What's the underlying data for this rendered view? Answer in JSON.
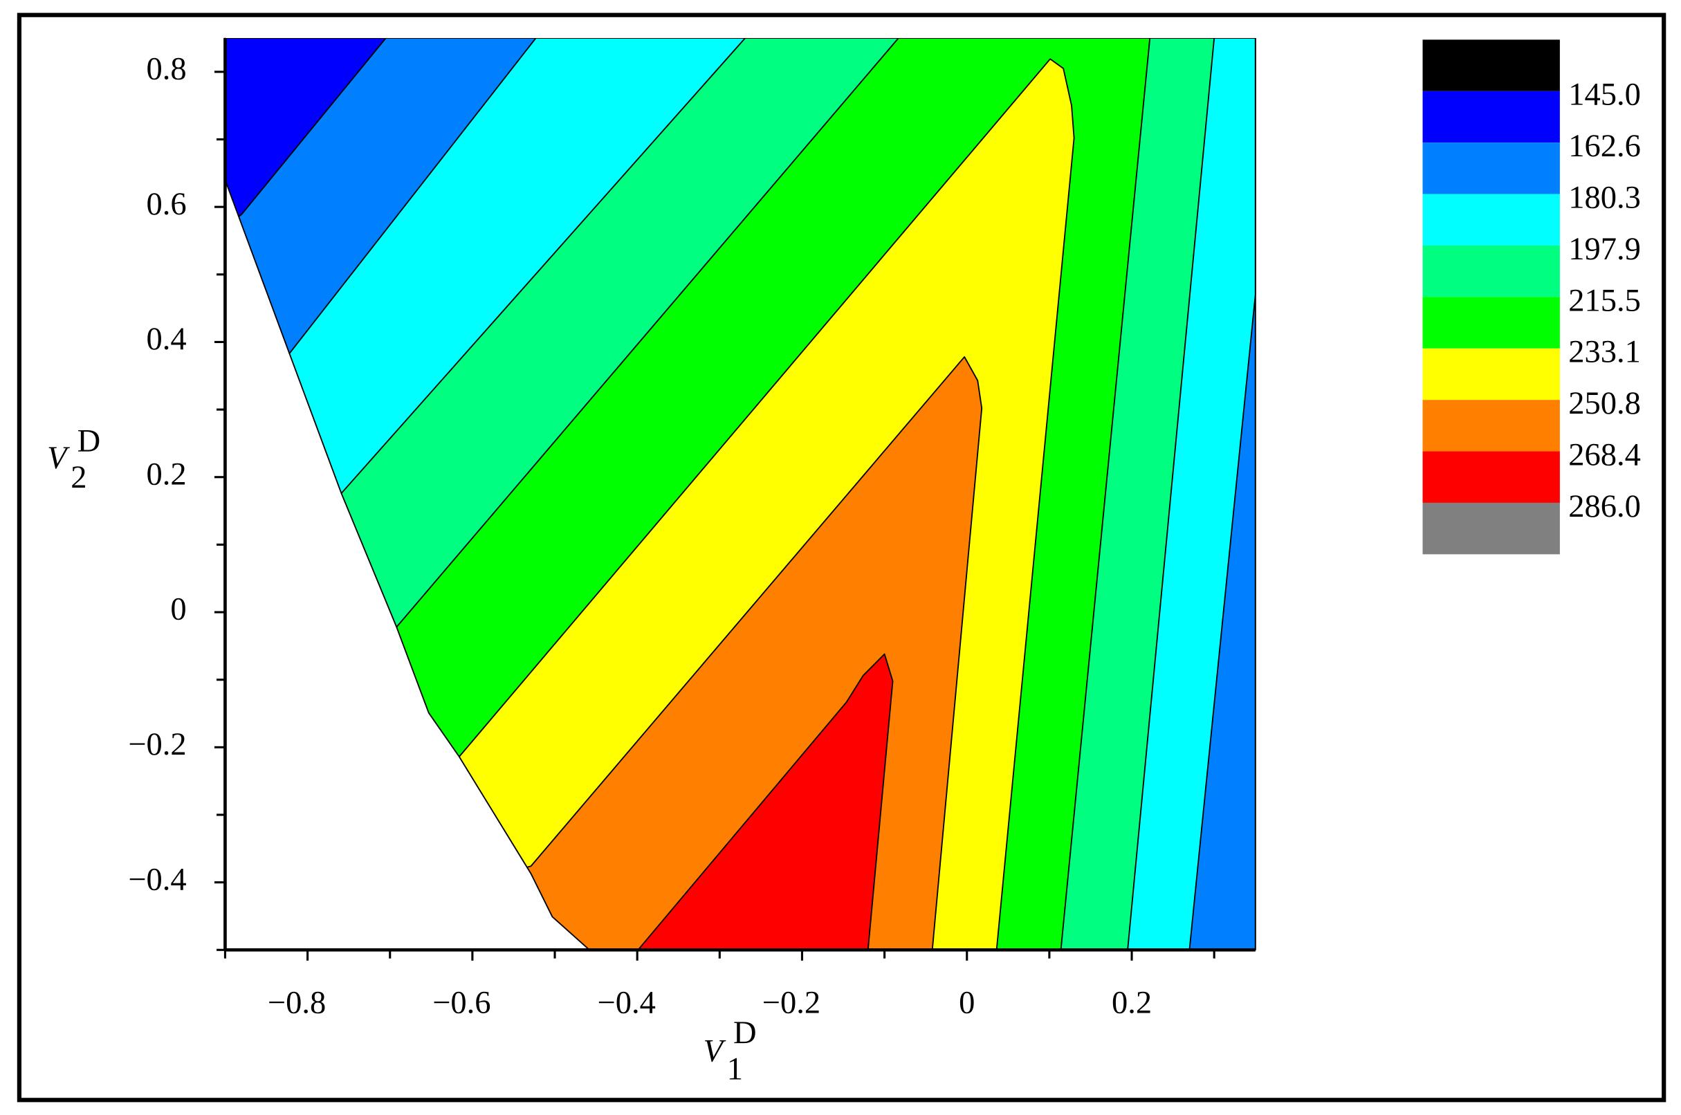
{
  "chart_data": {
    "type": "contour",
    "xlabel": {
      "text": "V",
      "sub": "1",
      "sup": "D"
    },
    "ylabel": {
      "text": "V",
      "sub": "2",
      "sup": "D"
    },
    "xlim": [
      -0.9,
      0.35
    ],
    "ylim": [
      -0.5,
      0.85
    ],
    "xticks": [
      {
        "value": -0.8,
        "label": "−0.8"
      },
      {
        "value": -0.6,
        "label": "−0.6"
      },
      {
        "value": -0.4,
        "label": "−0.4"
      },
      {
        "value": -0.2,
        "label": "−0.2"
      },
      0,
      0.2
    ],
    "yticks": [
      {
        "value": -0.4,
        "label": "−0.4"
      },
      {
        "value": -0.2,
        "label": "−0.2"
      },
      0,
      0.2,
      0.4,
      0.6,
      0.8
    ],
    "xminorticks": [
      -0.9,
      -0.7,
      -0.5,
      -0.3,
      -0.1,
      0.1,
      0.3
    ],
    "yminorticks": [
      -0.5,
      -0.3,
      -0.1,
      0.1,
      0.3,
      0.5,
      0.7
    ],
    "levels": [
      {
        "value": 145,
        "label": "145.0"
      },
      162.6,
      180.3,
      197.9,
      215.5,
      233.1,
      250.8,
      268.4,
      {
        "value": 286,
        "label": "286.0"
      }
    ],
    "legend_colors": [
      "#000000",
      "#0000ff",
      "#0080ff",
      "#00ffff",
      "#00ff80",
      "#00ff00",
      "#ffff00",
      "#ff8000",
      "#ff0000",
      "#808080"
    ],
    "regions": [
      {
        "color": "#0000ff",
        "x": [
          -0.9,
          0.35,
          0.35,
          -0.9
        ],
        "y": [
          0.85,
          0.85,
          -0.5,
          -0.5
        ]
      },
      {
        "color": "#0080ff",
        "x": [
          -0.705,
          0.35,
          0.35,
          -0.9,
          -0.9,
          -0.88
        ],
        "y": [
          0.85,
          0.85,
          -0.5,
          -0.5,
          0.57,
          0.589
        ]
      },
      {
        "color": "#00ffff",
        "x": [
          -0.523,
          0.35,
          0.35,
          0.27,
          -0.9,
          -0.9,
          -0.822
        ],
        "y": [
          0.85,
          0.85,
          0.47,
          -0.5,
          -0.5,
          0.3,
          0.383
        ]
      },
      {
        "color": "#00ff80",
        "x": [
          -0.269,
          0.3,
          0.195,
          -0.9,
          -0.9,
          -0.759
        ],
        "y": [
          0.85,
          0.85,
          -0.5,
          -0.5,
          0.1,
          0.176
        ]
      },
      {
        "color": "#00ff00",
        "x": [
          -0.083,
          0.222,
          0.114,
          -0.9,
          -0.9,
          -0.692
        ],
        "y": [
          0.85,
          0.85,
          -0.5,
          -0.5,
          -0.1,
          -0.022
        ]
      },
      {
        "color": "#ffff00",
        "x": [
          0.101,
          0.117,
          0.127,
          0.13,
          0.036,
          -0.9,
          -0.616
        ],
        "y": [
          0.819,
          0.805,
          0.75,
          0.702,
          -0.5,
          -0.5,
          -0.214
        ]
      },
      {
        "color": "#ff8000",
        "x": [
          -0.003,
          0.013,
          0.018,
          -0.042,
          -0.9,
          -0.529
        ],
        "y": [
          0.378,
          0.343,
          0.302,
          -0.5,
          -0.5,
          -0.376
        ]
      },
      {
        "color": "#ff0000",
        "x": [
          -0.1,
          -0.09,
          -0.12,
          -0.399,
          -0.146,
          -0.126
        ],
        "y": [
          -0.062,
          -0.102,
          -0.5,
          -0.5,
          -0.133,
          -0.094
        ]
      },
      {
        "color": "#ffffff",
        "x": [
          -0.9,
          -0.822,
          -0.759,
          -0.692,
          -0.653,
          -0.616,
          -0.529,
          -0.503,
          -0.458,
          -0.9
        ],
        "y": [
          0.64,
          0.383,
          0.176,
          -0.022,
          -0.149,
          -0.214,
          -0.387,
          -0.451,
          -0.5,
          -0.5
        ]
      }
    ]
  }
}
